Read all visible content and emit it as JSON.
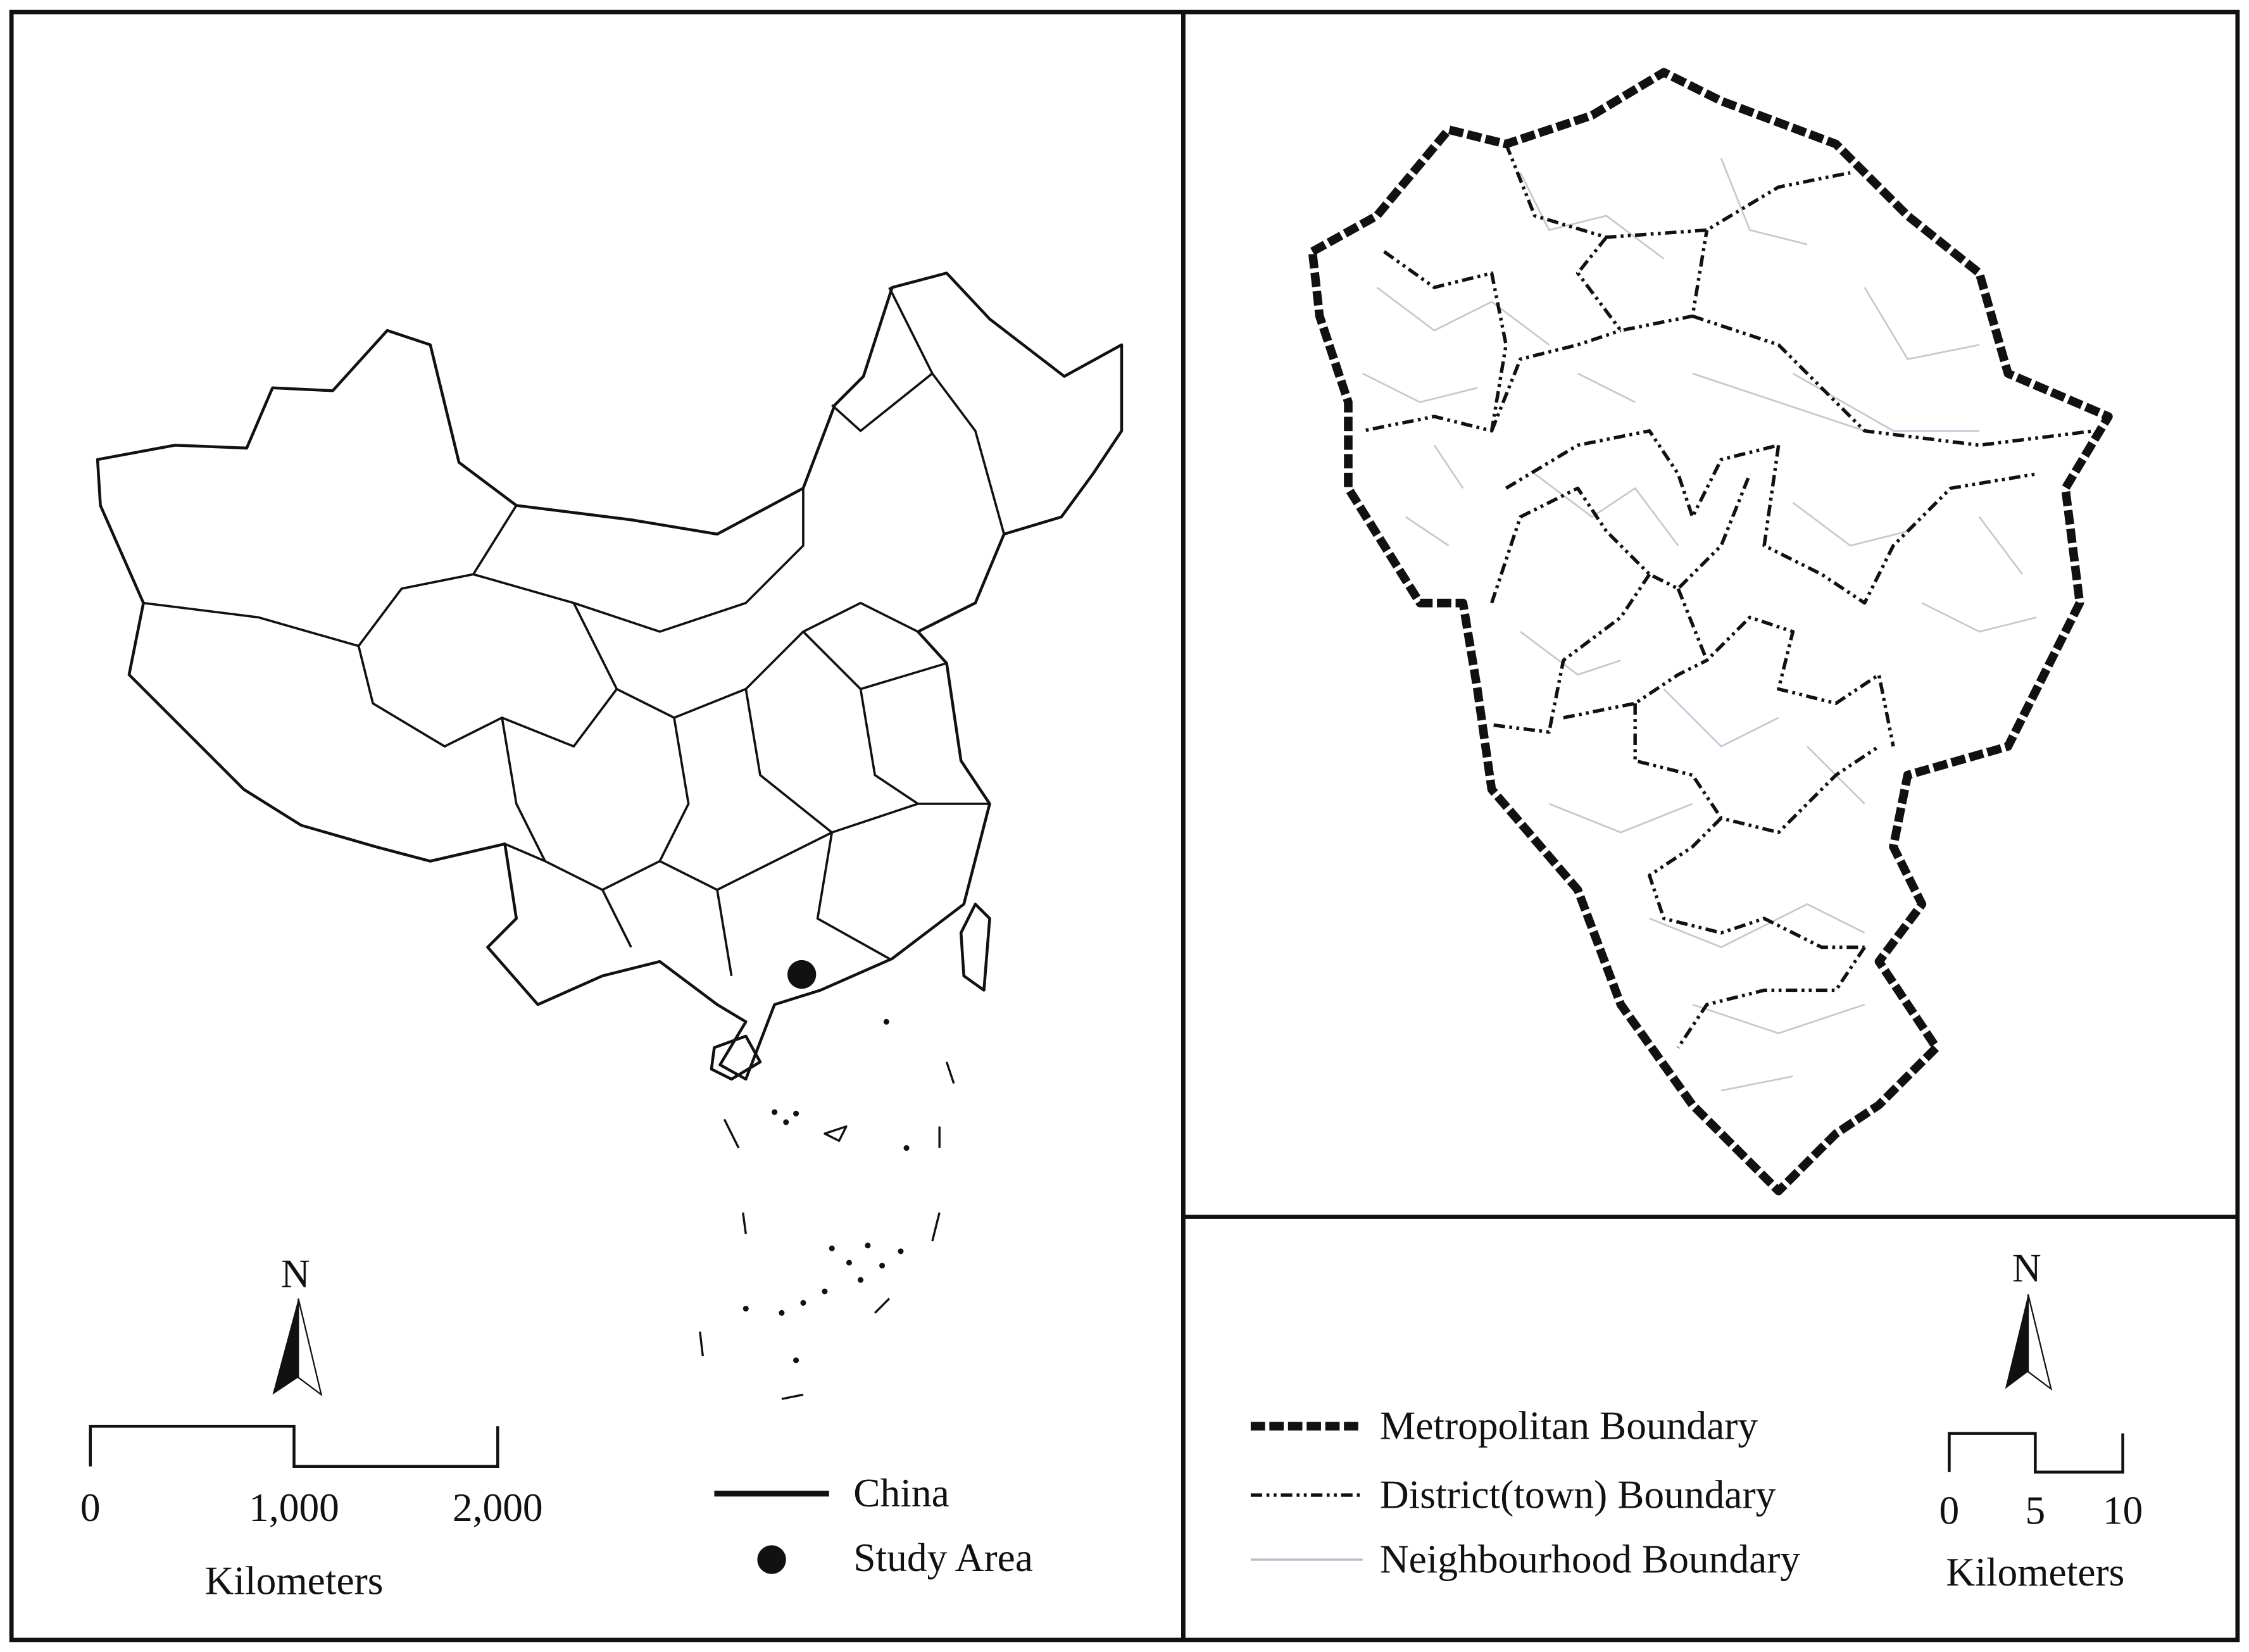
{
  "left_map": {
    "north": "N",
    "scale_bar": {
      "labels": [
        "0",
        "1,000",
        "2,000"
      ],
      "unit": "Kilometers"
    },
    "legend": [
      {
        "label": "China"
      },
      {
        "label": "Study Area"
      }
    ]
  },
  "right_map": {
    "north": "N",
    "scale_bar": {
      "labels": [
        "0",
        "5",
        "10"
      ],
      "unit": "Kilometers"
    },
    "legend": [
      {
        "label": "Metropolitan Boundary"
      },
      {
        "label": "District(town) Boundary"
      },
      {
        "label": "Neighbourhood Boundary"
      }
    ]
  }
}
